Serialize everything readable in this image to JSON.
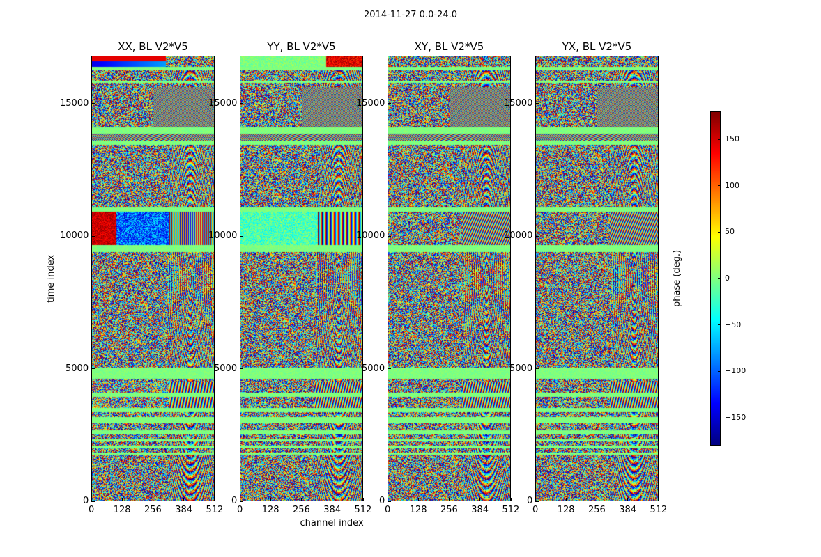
{
  "figure_title": "2014-11-27 0.0-24.0",
  "chart_data": {
    "type": "heatmap",
    "panels": [
      {
        "title": "XX, BL V2*V5",
        "pol": "XX"
      },
      {
        "title": "YY, BL V2*V5",
        "pol": "YY"
      },
      {
        "title": "XY, BL V2*V5",
        "pol": "XY"
      },
      {
        "title": "YX, BL V2*V5",
        "pol": "YX"
      }
    ],
    "xlabel": "channel index",
    "ylabel": "time index",
    "xlim": [
      0,
      512
    ],
    "ylim": [
      0,
      16800
    ],
    "xticks": [
      0,
      128,
      256,
      384,
      512
    ],
    "xtick_labels": [
      "0",
      "128",
      "256",
      "384",
      "512"
    ],
    "yticks": [
      0,
      5000,
      10000,
      15000
    ],
    "ytick_labels": [
      "0",
      "5000",
      "10000",
      "15000"
    ],
    "colorbar": {
      "label": "phase (deg.)",
      "range": [
        -180,
        180
      ],
      "ticks": [
        150,
        100,
        50,
        0,
        -50,
        -100,
        -150
      ],
      "tick_labels": [
        "150",
        "100",
        "50",
        "0",
        "−50",
        "−100",
        "−150"
      ],
      "colormap": "jet"
    }
  }
}
